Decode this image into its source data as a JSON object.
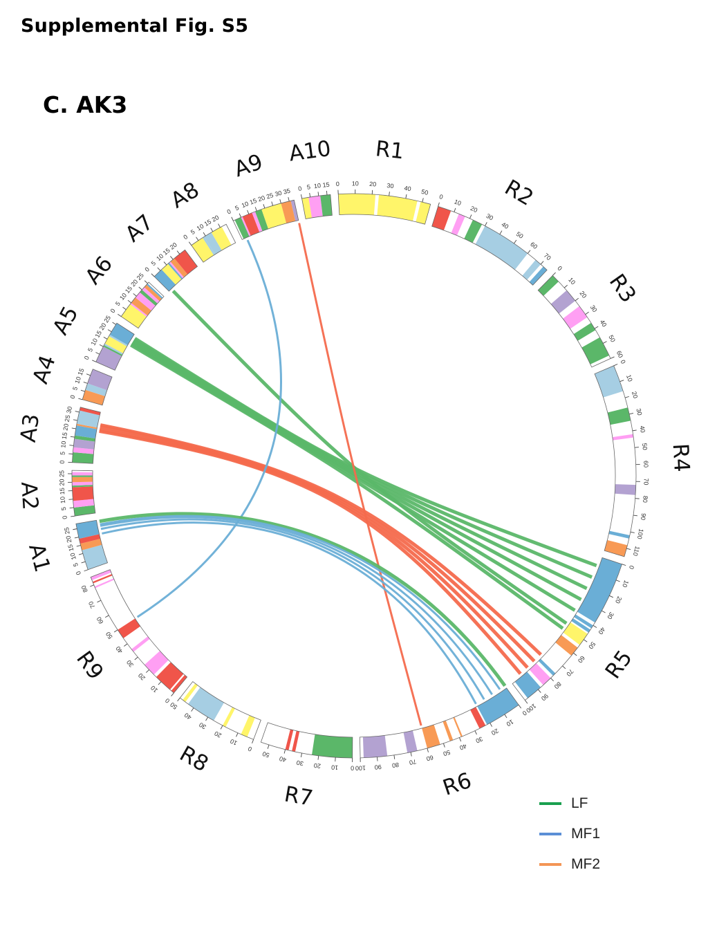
{
  "figure": {
    "supplemental_title": "Supplemental Fig. S5",
    "panel_title": "C. AK3"
  },
  "colors": {
    "LF": "#5bb769",
    "MF1": "#6aaed6",
    "MF2": "#f46a4d",
    "band_palette": [
      "#fff56a",
      "#ff9ff3",
      "#5bb769",
      "#a6cee3",
      "#6aaed6",
      "#f0554a",
      "#b3a2d1",
      "#f89a55"
    ]
  },
  "legend": [
    {
      "label": "LF",
      "color": "#1aa04f"
    },
    {
      "label": "MF1",
      "color": "#5b8fd6"
    },
    {
      "label": "MF2",
      "color": "#f39555"
    }
  ],
  "chart_data": {
    "type": "chord",
    "chromosomes": [
      {
        "name": "R1",
        "length": 55,
        "ticks": [
          0,
          10,
          20,
          30,
          40,
          50
        ],
        "bands": [
          [
            0,
            55,
            "#fff56a"
          ],
          [
            22,
            24,
            "#ffffff"
          ],
          [
            47,
            49,
            "#ffffff"
          ]
        ]
      },
      {
        "name": "R2",
        "length": 75,
        "ticks": [
          0,
          10,
          20,
          30,
          40,
          50,
          60,
          70
        ],
        "bands": [
          [
            0,
            8,
            "#f0554a"
          ],
          [
            13,
            17,
            "#ff9ff3"
          ],
          [
            22,
            28,
            "#5bb769"
          ],
          [
            30,
            60,
            "#a6cee3"
          ],
          [
            60,
            62,
            "#ffffff"
          ],
          [
            66,
            70,
            "#a6cee3"
          ],
          [
            72,
            75,
            "#6aaed6"
          ]
        ]
      },
      {
        "name": "R3",
        "length": 60,
        "ticks": [
          0,
          10,
          20,
          30,
          40,
          50,
          60
        ],
        "bands": [
          [
            0,
            5,
            "#5bb769"
          ],
          [
            12,
            20,
            "#b3a2d1"
          ],
          [
            24,
            32,
            "#ff9ff3"
          ],
          [
            36,
            41,
            "#5bb769"
          ],
          [
            46,
            58,
            "#5bb769"
          ]
        ]
      },
      {
        "name": "R4",
        "length": 115,
        "ticks": [
          0,
          10,
          20,
          30,
          40,
          50,
          60,
          70,
          80,
          90,
          100,
          110
        ],
        "bands": [
          [
            0,
            16,
            "#a6cee3"
          ],
          [
            26,
            34,
            "#5bb769"
          ],
          [
            42,
            44,
            "#ff9ff3"
          ],
          [
            72,
            78,
            "#b3a2d1"
          ],
          [
            102,
            104,
            "#6aaed6"
          ],
          [
            108,
            115,
            "#f89a55"
          ]
        ]
      },
      {
        "name": "R5",
        "length": 100,
        "ticks": [
          0,
          10,
          20,
          30,
          40,
          50,
          60,
          70,
          80,
          90,
          100
        ],
        "bands": [
          [
            0,
            38,
            "#6aaed6"
          ],
          [
            40,
            42,
            "#6aaed6"
          ],
          [
            43,
            45,
            "#6aaed6"
          ],
          [
            46,
            54,
            "#fff56a"
          ],
          [
            56,
            62,
            "#f89a55"
          ],
          [
            76,
            78,
            "#6aaed6"
          ],
          [
            80,
            86,
            "#ff9ff3"
          ],
          [
            88,
            98,
            "#6aaed6"
          ]
        ]
      },
      {
        "name": "R6",
        "length": 100,
        "ticks": [
          0,
          10,
          20,
          30,
          40,
          50,
          60,
          70,
          80,
          90,
          100
        ],
        "bands": [
          [
            0,
            22,
            "#6aaed6"
          ],
          [
            23,
            27,
            "#f0554a"
          ],
          [
            38,
            39,
            "#f89a55"
          ],
          [
            44,
            46,
            "#f89a55"
          ],
          [
            52,
            60,
            "#f89a55"
          ],
          [
            66,
            72,
            "#b3a2d1"
          ],
          [
            84,
            98,
            "#b3a2d1"
          ]
        ]
      },
      {
        "name": "R7",
        "length": 55,
        "ticks": [
          0,
          10,
          20,
          30,
          40,
          50
        ],
        "bands": [
          [
            0,
            24,
            "#5bb769"
          ],
          [
            34,
            36,
            "#f0554a"
          ],
          [
            38,
            40,
            "#f0554a"
          ]
        ]
      },
      {
        "name": "R8",
        "length": 50,
        "ticks": [
          0,
          10,
          20,
          30,
          40,
          50
        ],
        "bands": [
          [
            4,
            8,
            "#fff56a"
          ],
          [
            18,
            20,
            "#fff56a"
          ],
          [
            26,
            44,
            "#a6cee3"
          ],
          [
            46,
            48,
            "#fff56a"
          ]
        ]
      },
      {
        "name": "R9",
        "length": 85,
        "ticks": [
          0,
          10,
          20,
          30,
          40,
          50,
          60,
          70,
          80
        ],
        "bands": [
          [
            0,
            2,
            "#f0554a"
          ],
          [
            3,
            14,
            "#f0554a"
          ],
          [
            16,
            24,
            "#ff9ff3"
          ],
          [
            34,
            36,
            "#ff9ff3"
          ],
          [
            44,
            50,
            "#f0554a"
          ],
          [
            78,
            79,
            "#ff9ff3"
          ],
          [
            81,
            82,
            "#f0554a"
          ],
          [
            83,
            85,
            "#ff9ff3"
          ]
        ]
      },
      {
        "name": "A1",
        "length": 28,
        "ticks": [
          0,
          5,
          10,
          15,
          20,
          25
        ],
        "bands": [
          [
            0,
            12,
            "#a6cee3"
          ],
          [
            12,
            16,
            "#f89a55"
          ],
          [
            16,
            19,
            "#f0554a"
          ],
          [
            19,
            28,
            "#6aaed6"
          ]
        ]
      },
      {
        "name": "A2",
        "length": 27,
        "ticks": [
          0,
          5,
          10,
          15,
          20,
          25
        ],
        "bands": [
          [
            0,
            5,
            "#5bb769"
          ],
          [
            5,
            9,
            "#ff9ff3"
          ],
          [
            9,
            17,
            "#f0554a"
          ],
          [
            17,
            18,
            "#5bb769"
          ],
          [
            18,
            20,
            "#ff9ff3"
          ],
          [
            20,
            23,
            "#f89a55"
          ],
          [
            23,
            24,
            "#5bb769"
          ],
          [
            24,
            26,
            "#ff9ff3"
          ]
        ]
      },
      {
        "name": "A3",
        "length": 33,
        "ticks": [
          0,
          5,
          10,
          15,
          20,
          25,
          30
        ],
        "bands": [
          [
            0,
            6,
            "#5bb769"
          ],
          [
            6,
            9,
            "#ff9ff3"
          ],
          [
            9,
            14,
            "#b3a2d1"
          ],
          [
            14,
            16,
            "#5bb769"
          ],
          [
            16,
            22,
            "#6aaed6"
          ],
          [
            22,
            23,
            "#f89a55"
          ],
          [
            23,
            31,
            "#a6cee3"
          ],
          [
            31,
            33,
            "#f0554a"
          ]
        ]
      },
      {
        "name": "A4",
        "length": 19,
        "ticks": [
          0,
          5,
          10,
          15
        ],
        "bands": [
          [
            0,
            6,
            "#f89a55"
          ],
          [
            6,
            10,
            "#a6cee3"
          ],
          [
            10,
            19,
            "#b3a2d1"
          ]
        ]
      },
      {
        "name": "A5",
        "length": 26,
        "ticks": [
          0,
          5,
          10,
          15,
          20,
          25
        ],
        "bands": [
          [
            0,
            10,
            "#b3a2d1"
          ],
          [
            10,
            11,
            "#5bb769"
          ],
          [
            11,
            12,
            "#a6cee3"
          ],
          [
            12,
            17,
            "#fff56a"
          ],
          [
            17,
            18,
            "#a6cee3"
          ],
          [
            18,
            26,
            "#6aaed6"
          ]
        ]
      },
      {
        "name": "A6",
        "length": 26,
        "ticks": [
          0,
          5,
          10,
          15,
          20,
          25
        ],
        "bands": [
          [
            0,
            9,
            "#fff56a"
          ],
          [
            9,
            10,
            "#ff9ff3"
          ],
          [
            10,
            14,
            "#f89a55"
          ],
          [
            14,
            18,
            "#ff9ff3"
          ],
          [
            18,
            20,
            "#5bb769"
          ],
          [
            20,
            22,
            "#ff9ff3"
          ],
          [
            22,
            24,
            "#f89a55"
          ],
          [
            24,
            25,
            "#6aaed6"
          ]
        ]
      },
      {
        "name": "A7",
        "length": 24,
        "ticks": [
          0,
          5,
          10,
          15,
          20
        ],
        "bands": [
          [
            0,
            6,
            "#6aaed6"
          ],
          [
            6,
            11,
            "#fff56a"
          ],
          [
            11,
            12,
            "#6aaed6"
          ],
          [
            12,
            13,
            "#ff9ff3"
          ],
          [
            13,
            16,
            "#f89a55"
          ],
          [
            16,
            24,
            "#f0554a"
          ]
        ]
      },
      {
        "name": "A8",
        "length": 24,
        "ticks": [
          0,
          5,
          10,
          15,
          20
        ],
        "bands": [
          [
            0,
            8,
            "#fff56a"
          ],
          [
            8,
            9,
            "#a6cee3"
          ],
          [
            9,
            14,
            "#a6cee3"
          ],
          [
            14,
            21,
            "#fff56a"
          ],
          [
            21,
            24,
            "#ffffff"
          ]
        ]
      },
      {
        "name": "A9",
        "length": 38,
        "ticks": [
          0,
          5,
          10,
          15,
          20,
          25,
          30,
          35
        ],
        "bands": [
          [
            1,
            5,
            "#5bb769"
          ],
          [
            5,
            6,
            "#ff9ff3"
          ],
          [
            6,
            12,
            "#f0554a"
          ],
          [
            12,
            14,
            "#ff9ff3"
          ],
          [
            14,
            18,
            "#5bb769"
          ],
          [
            18,
            30,
            "#fff56a"
          ],
          [
            30,
            36,
            "#f89a55"
          ],
          [
            36,
            38,
            "#b3a2d1"
          ]
        ]
      },
      {
        "name": "A10",
        "length": 17,
        "ticks": [
          0,
          5,
          10,
          15
        ],
        "bands": [
          [
            0,
            4,
            "#fff56a"
          ],
          [
            4,
            11,
            "#ff9ff3"
          ],
          [
            11,
            17,
            "#5bb769"
          ]
        ]
      }
    ],
    "links": [
      {
        "type": "LF",
        "from": [
          "A7",
          2
        ],
        "to": [
          "R5",
          48
        ]
      },
      {
        "type": "LF",
        "from": [
          "A5",
          24
        ],
        "to": [
          "R5",
          6
        ]
      },
      {
        "type": "LF",
        "from": [
          "A5",
          23
        ],
        "to": [
          "R5",
          14
        ]
      },
      {
        "type": "LF",
        "from": [
          "A5",
          22
        ],
        "to": [
          "R5",
          22
        ]
      },
      {
        "type": "LF",
        "from": [
          "A5",
          21
        ],
        "to": [
          "R5",
          30
        ]
      },
      {
        "type": "LF",
        "from": [
          "A5",
          20
        ],
        "to": [
          "R5",
          38
        ]
      },
      {
        "type": "LF",
        "from": [
          "A5",
          19
        ],
        "to": [
          "R5",
          52
        ]
      },
      {
        "type": "MF2",
        "from": [
          "A3",
          25
        ],
        "to": [
          "R5",
          74
        ]
      },
      {
        "type": "MF2",
        "from": [
          "A3",
          24
        ],
        "to": [
          "R5",
          80
        ]
      },
      {
        "type": "MF2",
        "from": [
          "A3",
          22
        ],
        "to": [
          "R5",
          86
        ]
      },
      {
        "type": "MF2",
        "from": [
          "A3",
          21
        ],
        "to": [
          "R5",
          92
        ]
      },
      {
        "type": "MF2",
        "from": [
          "A9",
          38
        ],
        "to": [
          "R6",
          60
        ]
      },
      {
        "type": "MF1",
        "from": [
          "A9",
          3
        ],
        "to": [
          "R9",
          50
        ]
      },
      {
        "type": "LF",
        "from": [
          "A1",
          27
        ],
        "to": [
          "R6",
          0
        ]
      },
      {
        "type": "MF1",
        "from": [
          "A1",
          25
        ],
        "to": [
          "R6",
          4
        ]
      },
      {
        "type": "MF1",
        "from": [
          "A1",
          24
        ],
        "to": [
          "R6",
          10
        ]
      },
      {
        "type": "MF1",
        "from": [
          "A1",
          22
        ],
        "to": [
          "R6",
          16
        ]
      },
      {
        "type": "MF1",
        "from": [
          "A1",
          19
        ],
        "to": [
          "R6",
          22
        ]
      }
    ]
  }
}
